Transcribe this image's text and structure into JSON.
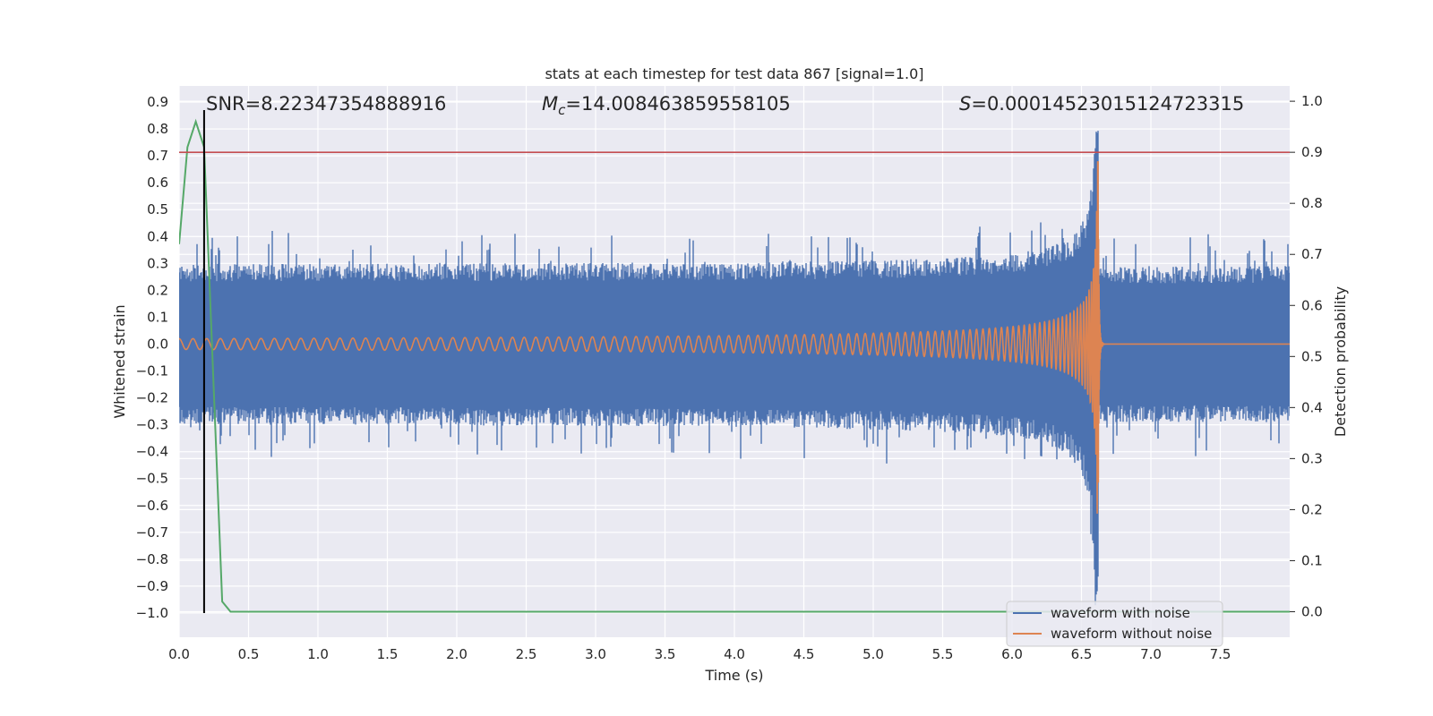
{
  "chart_data": {
    "type": "line",
    "title": "stats at each timestep for test data 867 [signal=1.0]",
    "xlabel": "Time (s)",
    "ylabel": "Whitened strain",
    "y2label": "Detection probability",
    "xlim": [
      0.0,
      8.0
    ],
    "ylim": [
      -1.09,
      0.96
    ],
    "y2lim": [
      -0.05,
      1.03
    ],
    "x_ticks": [
      "0.0",
      "0.5",
      "1.0",
      "1.5",
      "2.0",
      "2.5",
      "3.0",
      "3.5",
      "4.0",
      "4.5",
      "5.0",
      "5.5",
      "6.0",
      "6.5",
      "7.0",
      "7.5"
    ],
    "y_ticks": [
      "0.9",
      "0.8",
      "0.7",
      "0.6",
      "0.5",
      "0.4",
      "0.3",
      "0.2",
      "0.1",
      "0.0",
      "−0.1",
      "−0.2",
      "−0.3",
      "−0.4",
      "−0.5",
      "−0.6",
      "−0.7",
      "−0.8",
      "−0.9",
      "−1.0"
    ],
    "y2_ticks": [
      "1.0",
      "0.9",
      "0.8",
      "0.7",
      "0.6",
      "0.5",
      "0.4",
      "0.3",
      "0.2",
      "0.1",
      "0.0"
    ],
    "grid": true,
    "legend_position": "bottom-right",
    "annotations": {
      "snr": "SNR=8.22347354888916",
      "mc_symbol": "M",
      "mc_sub": "c",
      "mc_value": "=14.008463859558105",
      "s_symbol": "S",
      "s_value": "=0.00014523015124723315"
    },
    "threshold_line": {
      "axis": "y2",
      "value": 0.9
    },
    "marker_line": {
      "x": 0.18,
      "y_range": [
        -1.0,
        0.87
      ]
    },
    "series": [
      {
        "name": "waveform with noise",
        "axis": "y",
        "color": "#4c72b0",
        "kind": "noisy-band",
        "x_range": [
          0.0,
          8.0
        ],
        "base_amplitude": 0.29,
        "peak_time": 6.62,
        "peak_values": {
          "max": 0.86,
          "min": -0.98
        }
      },
      {
        "name": "waveform without noise",
        "axis": "y",
        "color": "#dd8452",
        "kind": "chirp",
        "x_range": [
          0.0,
          8.0
        ],
        "start_amplitude": 0.02,
        "merger_time": 6.62,
        "merger_amplitude": 0.68,
        "start_frequency_hz": 10
      },
      {
        "axis": "y2",
        "color": "#55a868",
        "kind": "line",
        "x": [
          0.0,
          0.06,
          0.12,
          0.18,
          0.25,
          0.31,
          0.37,
          8.0
        ],
        "y": [
          0.72,
          0.91,
          0.96,
          0.91,
          0.43,
          0.02,
          0.0,
          0.0
        ]
      }
    ]
  },
  "colors": {
    "background": "#ffffff",
    "plot_background": "#eaeaf2",
    "grid": "#ffffff",
    "threshold": "#c44e52",
    "marker": "#000000",
    "text": "#262626"
  }
}
